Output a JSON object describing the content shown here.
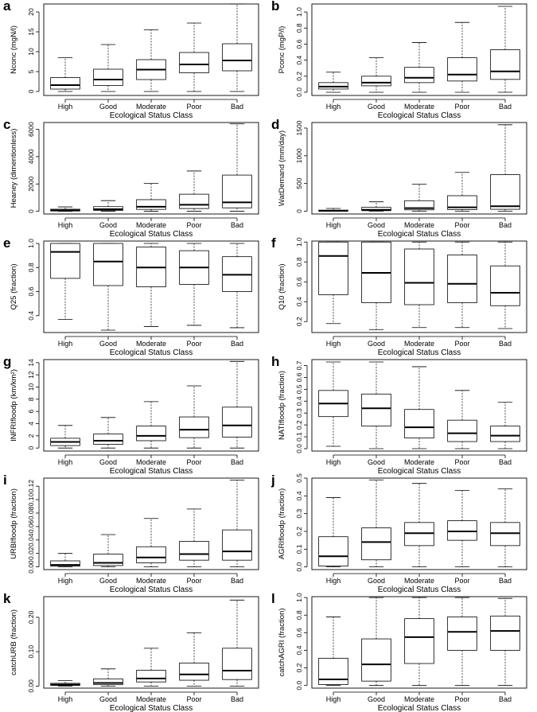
{
  "figure": {
    "x_axis_label": "Ecological Status Class",
    "categories": [
      "High",
      "Good",
      "Moderate",
      "Poor",
      "Bad"
    ]
  },
  "chart_data": [
    {
      "type": "boxplot",
      "panel": "a",
      "ylabel": "Nconc (mgN/l)",
      "xlabel": "Ecological Status Class",
      "categories": [
        "High",
        "Good",
        "Moderate",
        "Poor",
        "Bad"
      ],
      "ylim": [
        -1,
        22
      ],
      "yticks": [
        0,
        5,
        10,
        15,
        20
      ],
      "ytick_labels": [
        "0",
        "5",
        "10",
        "15",
        "20"
      ],
      "boxes": [
        [
          0,
          0.6,
          1.6,
          3.5,
          8.5
        ],
        [
          0,
          1.5,
          3,
          5.6,
          11.8
        ],
        [
          0,
          3,
          5.5,
          8,
          15.5
        ],
        [
          0,
          4.7,
          6.8,
          9.8,
          17.2
        ],
        [
          0,
          5.2,
          7.8,
          12,
          22
        ]
      ]
    },
    {
      "type": "boxplot",
      "panel": "b",
      "ylabel": "Pconc (mgP/l)",
      "xlabel": "Ecological Status Class",
      "categories": [
        "High",
        "Good",
        "Moderate",
        "Poor",
        "Bad"
      ],
      "ylim": [
        -0.04,
        1.1
      ],
      "yticks": [
        0,
        0.2,
        0.4,
        0.6,
        0.8,
        1.0
      ],
      "ytick_labels": [
        "0.0",
        "0.2",
        "0.4",
        "0.6",
        "0.8",
        "1.0"
      ],
      "boxes": [
        [
          0,
          0.04,
          0.07,
          0.12,
          0.25
        ],
        [
          0,
          0.08,
          0.12,
          0.2,
          0.43
        ],
        [
          0,
          0.12,
          0.18,
          0.31,
          0.62
        ],
        [
          0,
          0.14,
          0.22,
          0.43,
          0.87
        ],
        [
          0,
          0.16,
          0.26,
          0.53,
          1.07
        ]
      ]
    },
    {
      "type": "boxplot",
      "panel": "c",
      "ylabel": "Heaney (dimentionless)",
      "xlabel": "Ecological Status Class",
      "categories": [
        "High",
        "Good",
        "Moderate",
        "Poor",
        "Bad"
      ],
      "ylim": [
        -200,
        6500
      ],
      "yticks": [
        0,
        2000,
        4000,
        6000
      ],
      "ytick_labels": [
        "0",
        "2000",
        "4000",
        "6000"
      ],
      "boxes": [
        [
          0,
          20,
          60,
          150,
          320
        ],
        [
          0,
          60,
          150,
          340,
          780
        ],
        [
          0,
          140,
          330,
          850,
          2050
        ],
        [
          0,
          200,
          480,
          1250,
          2950
        ],
        [
          0,
          250,
          650,
          2650,
          6400
        ]
      ]
    },
    {
      "type": "boxplot",
      "panel": "d",
      "ylabel": "WatDemand (mm/day)",
      "xlabel": "Ecological Status Class",
      "categories": [
        "High",
        "Good",
        "Moderate",
        "Poor",
        "Bad"
      ],
      "ylim": [
        -50,
        1600
      ],
      "yticks": [
        0,
        500,
        1000,
        1500
      ],
      "ytick_labels": [
        "0",
        "500",
        "1000",
        "1500"
      ],
      "boxes": [
        [
          0,
          3,
          8,
          20,
          50
        ],
        [
          0,
          10,
          25,
          70,
          170
        ],
        [
          0,
          25,
          55,
          190,
          490
        ],
        [
          0,
          30,
          70,
          280,
          700
        ],
        [
          0,
          35,
          90,
          660,
          1560
        ]
      ]
    },
    {
      "type": "boxplot",
      "panel": "e",
      "ylabel": "Q25 (fraction)",
      "xlabel": "Ecological Status Class",
      "categories": [
        "High",
        "Good",
        "Moderate",
        "Poor",
        "Bad"
      ],
      "ylim": [
        0.26,
        1.02
      ],
      "yticks": [
        0.4,
        0.6,
        0.8,
        1.0
      ],
      "ytick_labels": [
        "0.4",
        "0.6",
        "0.8",
        "1.0"
      ],
      "boxes": [
        [
          0.37,
          0.71,
          0.93,
          1.0,
          1.0
        ],
        [
          0.28,
          0.65,
          0.85,
          1.0,
          1.0
        ],
        [
          0.31,
          0.64,
          0.8,
          0.97,
          1.0
        ],
        [
          0.32,
          0.66,
          0.8,
          0.94,
          1.0
        ],
        [
          0.3,
          0.6,
          0.74,
          0.89,
          1.0
        ]
      ]
    },
    {
      "type": "boxplot",
      "panel": "f",
      "ylabel": "Q10 (fraction)",
      "xlabel": "Ecological Status Class",
      "categories": [
        "High",
        "Good",
        "Moderate",
        "Poor",
        "Bad"
      ],
      "ylim": [
        0.09,
        1.01
      ],
      "yticks": [
        0.2,
        0.4,
        0.6,
        0.8,
        1.0
      ],
      "ytick_labels": [
        "0.2",
        "0.4",
        "0.6",
        "0.8",
        "1.0"
      ],
      "boxes": [
        [
          0.18,
          0.47,
          0.86,
          1.0,
          1.0
        ],
        [
          0.12,
          0.39,
          0.69,
          1.0,
          1.0
        ],
        [
          0.14,
          0.37,
          0.59,
          0.93,
          1.0
        ],
        [
          0.14,
          0.39,
          0.58,
          0.87,
          1.0
        ],
        [
          0.13,
          0.36,
          0.49,
          0.76,
          1.0
        ]
      ]
    },
    {
      "type": "boxplot",
      "panel": "g",
      "ylabel": "INFRIfloodp (km/km²)",
      "xlabel": "Ecological Status Class",
      "categories": [
        "High",
        "Good",
        "Moderate",
        "Poor",
        "Bad"
      ],
      "ylim": [
        -0.5,
        14.5
      ],
      "yticks": [
        0,
        2,
        4,
        6,
        8,
        10,
        12,
        14
      ],
      "ytick_labels": [
        "0",
        "2",
        "4",
        "6",
        "8",
        "10",
        "12",
        "14"
      ],
      "boxes": [
        [
          0,
          0.4,
          1,
          1.6,
          3.7
        ],
        [
          0,
          0.6,
          1.2,
          2.3,
          5
        ],
        [
          0,
          1.2,
          2,
          3.6,
          7.6
        ],
        [
          0,
          1.7,
          3,
          5.1,
          10.2
        ],
        [
          0,
          1.8,
          3.7,
          6.7,
          14.2
        ]
      ]
    },
    {
      "type": "boxplot",
      "panel": "h",
      "ylabel": "NATIfloodp (fraction)",
      "xlabel": "Ecological Status Class",
      "categories": [
        "High",
        "Good",
        "Moderate",
        "Poor",
        "Bad"
      ],
      "ylim": [
        -0.02,
        0.75
      ],
      "yticks": [
        0,
        0.1,
        0.2,
        0.3,
        0.4,
        0.5,
        0.6,
        0.7
      ],
      "ytick_labels": [
        "0.0",
        "0.1",
        "0.2",
        "0.3",
        "0.4",
        "0.5",
        "0.6",
        "0.7"
      ],
      "boxes": [
        [
          0.02,
          0.27,
          0.38,
          0.49,
          0.73
        ],
        [
          0,
          0.19,
          0.34,
          0.46,
          0.73
        ],
        [
          0,
          0.09,
          0.18,
          0.33,
          0.69
        ],
        [
          0,
          0.06,
          0.13,
          0.24,
          0.49
        ],
        [
          0,
          0.06,
          0.11,
          0.19,
          0.39
        ]
      ]
    },
    {
      "type": "boxplot",
      "panel": "i",
      "ylabel": "URBIfloodp (fraction)",
      "xlabel": "Ecological Status Class",
      "categories": [
        "High",
        "Good",
        "Moderate",
        "Poor",
        "Bad"
      ],
      "ylim": [
        -0.004,
        0.132
      ],
      "yticks": [
        0,
        0.02,
        0.04,
        0.06,
        0.08,
        0.1,
        0.12
      ],
      "ytick_labels": [
        "0.00",
        "0.02",
        "0.04",
        "0.06",
        "0.08",
        "0.10",
        "0.12"
      ],
      "boxes": [
        [
          0,
          0.001,
          0.003,
          0.009,
          0.02
        ],
        [
          0,
          0.002,
          0.006,
          0.019,
          0.048
        ],
        [
          0,
          0.006,
          0.014,
          0.03,
          0.072
        ],
        [
          0,
          0.01,
          0.019,
          0.038,
          0.086
        ],
        [
          0,
          0.01,
          0.023,
          0.055,
          0.129
        ]
      ]
    },
    {
      "type": "boxplot",
      "panel": "j",
      "ylabel": "AGRIfloodp (fraction)",
      "xlabel": "Ecological Status Class",
      "categories": [
        "High",
        "Good",
        "Moderate",
        "Poor",
        "Bad"
      ],
      "ylim": [
        -0.015,
        0.5
      ],
      "yticks": [
        0,
        0.1,
        0.2,
        0.3,
        0.4,
        0.5
      ],
      "ytick_labels": [
        "0.0",
        "0.1",
        "0.2",
        "0.3",
        "0.4",
        "0.5"
      ],
      "boxes": [
        [
          0,
          0.005,
          0.06,
          0.17,
          0.39
        ],
        [
          0,
          0.04,
          0.14,
          0.22,
          0.49
        ],
        [
          0,
          0.12,
          0.19,
          0.25,
          0.47
        ],
        [
          0,
          0.15,
          0.2,
          0.26,
          0.43
        ],
        [
          0,
          0.12,
          0.19,
          0.25,
          0.44
        ]
      ]
    },
    {
      "type": "boxplot",
      "panel": "k",
      "ylabel": "catchURB (fraction)",
      "xlabel": "Ecological Status Class",
      "categories": [
        "High",
        "Good",
        "Moderate",
        "Poor",
        "Bad"
      ],
      "ylim": [
        -0.006,
        0.26
      ],
      "yticks": [
        0,
        0.1,
        0.2
      ],
      "ytick_labels": [
        "0.00",
        "0.10",
        "0.20"
      ],
      "boxes": [
        [
          0,
          0.002,
          0.004,
          0.008,
          0.016
        ],
        [
          0,
          0.004,
          0.009,
          0.021,
          0.05
        ],
        [
          0,
          0.012,
          0.022,
          0.046,
          0.11
        ],
        [
          0,
          0.017,
          0.034,
          0.067,
          0.155
        ],
        [
          0,
          0.019,
          0.045,
          0.11,
          0.25
        ]
      ]
    },
    {
      "type": "boxplot",
      "panel": "l",
      "ylabel": "catchAGRI (fraction)",
      "xlabel": "Ecological Status Class",
      "categories": [
        "High",
        "Good",
        "Moderate",
        "Poor",
        "Bad"
      ],
      "ylim": [
        -0.03,
        1.01
      ],
      "yticks": [
        0,
        0.2,
        0.4,
        0.6,
        0.8,
        1.0
      ],
      "ytick_labels": [
        "0.0",
        "0.2",
        "0.4",
        "0.6",
        "0.8",
        "1.0"
      ],
      "boxes": [
        [
          0,
          0.01,
          0.07,
          0.31,
          0.78
        ],
        [
          0,
          0.05,
          0.24,
          0.53,
          1.0
        ],
        [
          0,
          0.25,
          0.55,
          0.76,
          1.0
        ],
        [
          0,
          0.4,
          0.61,
          0.78,
          1.0
        ],
        [
          0,
          0.4,
          0.62,
          0.79,
          0.99
        ]
      ]
    }
  ]
}
